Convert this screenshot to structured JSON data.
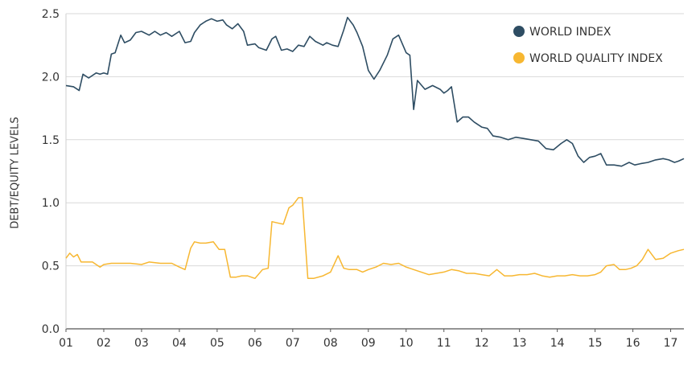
{
  "chart_data": {
    "type": "line",
    "xlabel": "",
    "ylabel": "DEBT/EQUITY LEVELS",
    "ylim": [
      0.0,
      2.5
    ],
    "xlim": [
      2001.0,
      2017.35
    ],
    "yticks": [
      "0.0",
      "0.5",
      "1.0",
      "1.5",
      "2.0",
      "2.5"
    ],
    "xticks": [
      "01",
      "02",
      "03",
      "04",
      "05",
      "06",
      "07",
      "08",
      "09",
      "10",
      "11",
      "12",
      "13",
      "14",
      "15",
      "16",
      "17"
    ],
    "grid": "horizontal",
    "legend_position": "top-right",
    "series": [
      {
        "name": "WORLD INDEX",
        "color": "#2e4d63",
        "x": [
          2001.0,
          2001.2,
          2001.35,
          2001.45,
          2001.6,
          2001.8,
          2001.9,
          2002.0,
          2002.1,
          2002.2,
          2002.3,
          2002.45,
          2002.55,
          2002.7,
          2002.85,
          2003.0,
          2003.2,
          2003.35,
          2003.5,
          2003.65,
          2003.8,
          2004.0,
          2004.15,
          2004.3,
          2004.4,
          2004.55,
          2004.7,
          2004.85,
          2005.0,
          2005.15,
          2005.25,
          2005.4,
          2005.55,
          2005.7,
          2005.8,
          2006.0,
          2006.1,
          2006.3,
          2006.45,
          2006.55,
          2006.7,
          2006.85,
          2007.0,
          2007.15,
          2007.3,
          2007.45,
          2007.6,
          2007.8,
          2007.9,
          2008.05,
          2008.2,
          2008.35,
          2008.45,
          2008.6,
          2008.7,
          2008.85,
          2009.0,
          2009.15,
          2009.3,
          2009.5,
          2009.65,
          2009.8,
          2010.0,
          2010.1,
          2010.2,
          2010.3,
          2010.5,
          2010.7,
          2010.9,
          2011.0,
          2011.1,
          2011.2,
          2011.35,
          2011.5,
          2011.65,
          2011.8,
          2012.0,
          2012.15,
          2012.3,
          2012.5,
          2012.7,
          2012.9,
          2013.1,
          2013.3,
          2013.5,
          2013.7,
          2013.9,
          2014.1,
          2014.25,
          2014.4,
          2014.55,
          2014.7,
          2014.85,
          2015.0,
          2015.15,
          2015.3,
          2015.5,
          2015.7,
          2015.9,
          2016.05,
          2016.2,
          2016.4,
          2016.6,
          2016.8,
          2016.95,
          2017.1,
          2017.2,
          2017.35
        ],
        "values": [
          1.93,
          1.92,
          1.89,
          2.02,
          1.99,
          2.03,
          2.02,
          2.03,
          2.02,
          2.18,
          2.19,
          2.33,
          2.27,
          2.29,
          2.35,
          2.36,
          2.33,
          2.36,
          2.33,
          2.35,
          2.32,
          2.36,
          2.27,
          2.28,
          2.35,
          2.41,
          2.44,
          2.46,
          2.44,
          2.45,
          2.41,
          2.38,
          2.42,
          2.36,
          2.25,
          2.26,
          2.23,
          2.21,
          2.3,
          2.32,
          2.21,
          2.22,
          2.2,
          2.25,
          2.24,
          2.32,
          2.28,
          2.25,
          2.27,
          2.25,
          2.24,
          2.37,
          2.47,
          2.41,
          2.35,
          2.24,
          2.05,
          1.98,
          2.05,
          2.17,
          2.3,
          2.33,
          2.19,
          2.17,
          1.74,
          1.97,
          1.9,
          1.93,
          1.9,
          1.87,
          1.89,
          1.92,
          1.64,
          1.68,
          1.68,
          1.64,
          1.6,
          1.59,
          1.53,
          1.52,
          1.5,
          1.52,
          1.51,
          1.5,
          1.49,
          1.43,
          1.42,
          1.47,
          1.5,
          1.47,
          1.37,
          1.32,
          1.36,
          1.37,
          1.39,
          1.3,
          1.3,
          1.29,
          1.32,
          1.3,
          1.31,
          1.32,
          1.34,
          1.35,
          1.34,
          1.32,
          1.33,
          1.35
        ]
      },
      {
        "name": "WORLD QUALITY INDEX",
        "color": "#f7b731",
        "x": [
          2001.0,
          2001.1,
          2001.2,
          2001.3,
          2001.4,
          2001.5,
          2001.7,
          2001.9,
          2002.0,
          2002.2,
          2002.4,
          2002.7,
          2003.0,
          2003.2,
          2003.5,
          2003.8,
          2004.0,
          2004.15,
          2004.3,
          2004.4,
          2004.55,
          2004.7,
          2004.9,
          2005.05,
          2005.2,
          2005.35,
          2005.5,
          2005.65,
          2005.8,
          2006.0,
          2006.2,
          2006.35,
          2006.45,
          2006.6,
          2006.75,
          2006.9,
          2007.0,
          2007.15,
          2007.25,
          2007.4,
          2007.55,
          2007.8,
          2008.0,
          2008.2,
          2008.35,
          2008.5,
          2008.7,
          2008.85,
          2009.0,
          2009.2,
          2009.4,
          2009.6,
          2009.8,
          2010.0,
          2010.2,
          2010.4,
          2010.6,
          2010.8,
          2011.0,
          2011.2,
          2011.4,
          2011.6,
          2011.8,
          2012.0,
          2012.2,
          2012.4,
          2012.6,
          2012.8,
          2013.0,
          2013.2,
          2013.4,
          2013.6,
          2013.8,
          2014.0,
          2014.2,
          2014.4,
          2014.6,
          2014.8,
          2015.0,
          2015.15,
          2015.3,
          2015.5,
          2015.65,
          2015.8,
          2015.95,
          2016.1,
          2016.25,
          2016.4,
          2016.6,
          2016.8,
          2017.0,
          2017.2,
          2017.35
        ],
        "values": [
          0.56,
          0.6,
          0.57,
          0.59,
          0.53,
          0.53,
          0.53,
          0.49,
          0.51,
          0.52,
          0.52,
          0.52,
          0.51,
          0.53,
          0.52,
          0.52,
          0.49,
          0.47,
          0.64,
          0.69,
          0.68,
          0.68,
          0.69,
          0.63,
          0.63,
          0.41,
          0.41,
          0.42,
          0.42,
          0.4,
          0.47,
          0.48,
          0.85,
          0.84,
          0.83,
          0.96,
          0.98,
          1.04,
          1.04,
          0.4,
          0.4,
          0.42,
          0.45,
          0.58,
          0.48,
          0.47,
          0.47,
          0.45,
          0.47,
          0.49,
          0.52,
          0.51,
          0.52,
          0.49,
          0.47,
          0.45,
          0.43,
          0.44,
          0.45,
          0.47,
          0.46,
          0.44,
          0.44,
          0.43,
          0.42,
          0.47,
          0.42,
          0.42,
          0.43,
          0.43,
          0.44,
          0.42,
          0.41,
          0.42,
          0.42,
          0.43,
          0.42,
          0.42,
          0.43,
          0.45,
          0.5,
          0.51,
          0.47,
          0.47,
          0.48,
          0.5,
          0.55,
          0.63,
          0.55,
          0.56,
          0.6,
          0.62,
          0.63
        ]
      }
    ]
  }
}
